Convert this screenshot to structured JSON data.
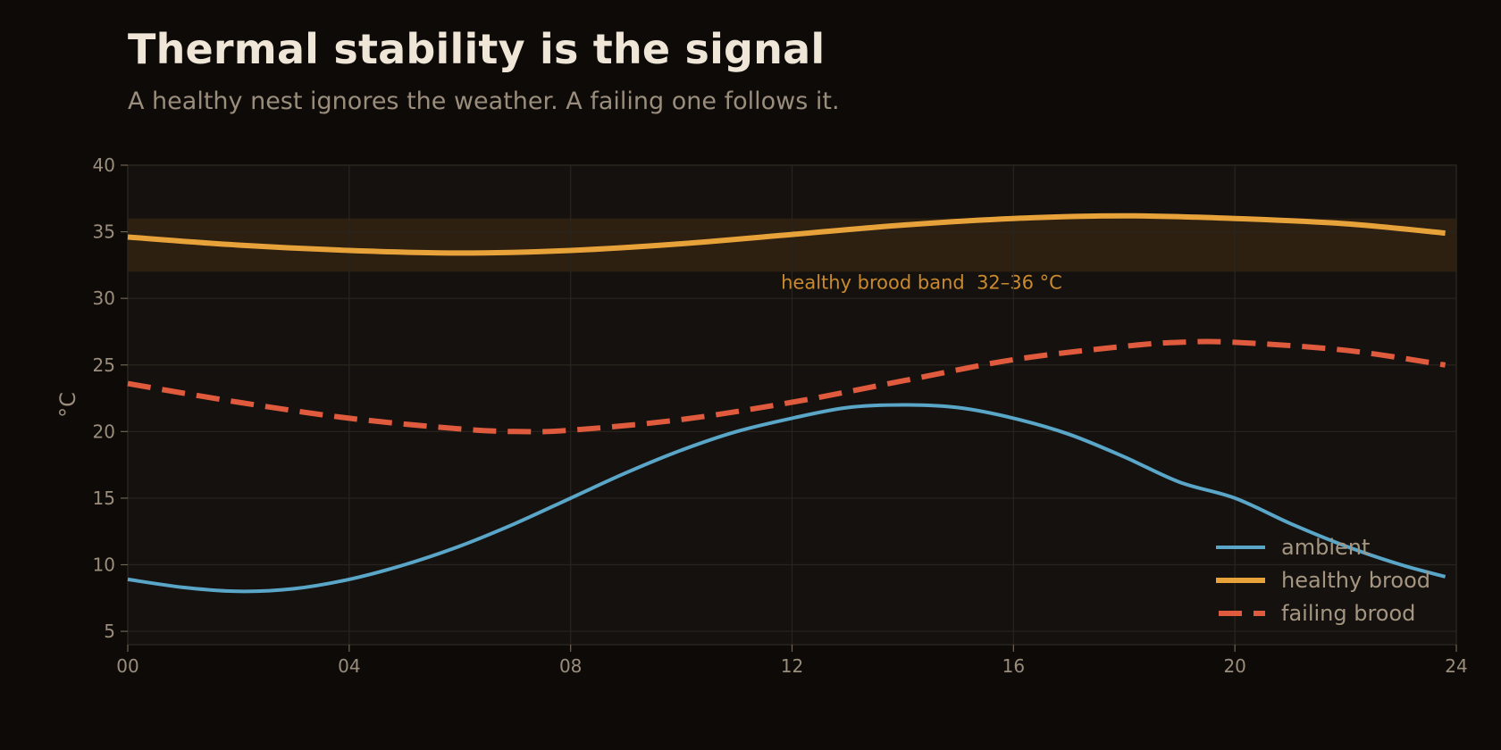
{
  "header": {
    "title": "Thermal stability is the signal",
    "subtitle": "A healthy nest ignores the weather. A failing one follows it."
  },
  "chart_data": {
    "type": "line",
    "title": "Thermal stability is the signal",
    "subtitle": "A healthy nest ignores the weather. A failing one follows it.",
    "xlabel": "",
    "ylabel": "°C",
    "xlim": [
      0,
      24
    ],
    "ylim": [
      4,
      40
    ],
    "x_ticks": [
      0,
      4,
      8,
      12,
      16,
      20,
      24
    ],
    "x_tick_labels": [
      "00",
      "04",
      "08",
      "12",
      "16",
      "20",
      "24"
    ],
    "y_ticks": [
      5,
      10,
      15,
      20,
      25,
      30,
      35,
      40
    ],
    "y_tick_labels": [
      "5",
      "10",
      "15",
      "20",
      "25",
      "30",
      "35",
      "40"
    ],
    "grid": true,
    "legend_position": "bottom-right",
    "band": {
      "y_min": 32,
      "y_max": 36,
      "label": "healthy brood band  32–36 °C",
      "color": "#3a2a14"
    },
    "series": [
      {
        "name": "ambient",
        "color": "#5aa6c8",
        "style": "solid",
        "x": [
          0,
          1,
          2,
          3,
          4,
          5,
          6,
          7,
          8,
          9,
          10,
          11,
          12,
          13,
          14,
          15,
          16,
          17,
          18,
          19,
          20,
          21,
          22,
          23,
          23.8
        ],
        "y": [
          8.9,
          8.3,
          8.0,
          8.2,
          8.9,
          10.0,
          11.4,
          13.1,
          15.0,
          16.9,
          18.6,
          20.0,
          21.0,
          21.8,
          22.0,
          21.8,
          21.0,
          19.8,
          18.1,
          16.2,
          15.0,
          13.1,
          11.4,
          10.0,
          9.1
        ]
      },
      {
        "name": "healthy brood",
        "color": "#e8a23a",
        "style": "solid",
        "x": [
          0,
          2,
          4,
          6,
          8,
          10,
          12,
          14,
          16,
          18,
          20,
          22,
          23.8
        ],
        "y": [
          34.6,
          34.0,
          33.6,
          33.4,
          33.6,
          34.1,
          34.8,
          35.5,
          36.0,
          36.2,
          36.0,
          35.6,
          34.9
        ]
      },
      {
        "name": "failing brood",
        "color": "#e05a3e",
        "style": "dashed",
        "x": [
          0,
          2,
          4,
          6,
          7,
          8,
          10,
          12,
          14,
          16,
          18,
          19,
          20,
          22,
          23.8
        ],
        "y": [
          23.6,
          22.2,
          21.0,
          20.2,
          20.0,
          20.1,
          20.9,
          22.2,
          23.8,
          25.4,
          26.4,
          26.7,
          26.7,
          26.1,
          25.0
        ]
      }
    ]
  }
}
